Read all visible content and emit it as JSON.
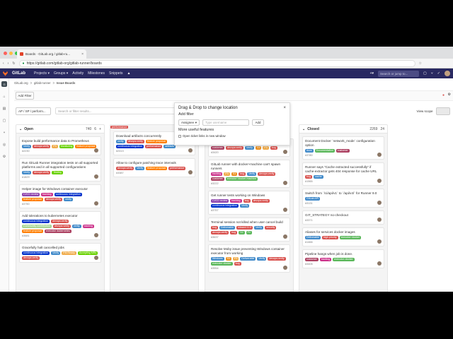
{
  "browser": {
    "tab_title": "Boards · GitLab.org / gitlab-ru...",
    "url": "https://gitlab.com/gitlab-org/gitlab-runner/boards"
  },
  "header": {
    "brand": "GitLab",
    "nav": [
      "Projects ▾",
      "Groups ▾",
      "Activity",
      "Milestones",
      "Snippets"
    ],
    "search_placeholder": "Search or jump to..."
  },
  "breadcrumb": [
    "GitLab.org",
    ">",
    "gitlab-runner",
    ">",
    "Issue Boards"
  ],
  "toolbar": {
    "add_filter": "Add Filter"
  },
  "filter": {
    "scope": "AP / SP / perform...",
    "placeholder": "Search or filter results...",
    "view_scope": "View scope"
  },
  "popup": {
    "title": "Drag & Drop to change location",
    "subtitle": "Add filter",
    "select": "Assignee",
    "input_placeholder": "Type username",
    "add": "Add",
    "more": "More useful features",
    "checkbox": "Open ticket links in new window"
  },
  "boards": [
    {
      "name": "Open",
      "count": "740",
      "weight": "6",
      "cards": [
        {
          "title": "Expose build performance data to Prometheus",
          "labels": [
            [
              "Verify",
              "#428bca"
            ],
            [
              "devops:verify",
              "#d9534f"
            ],
            [
              "P3",
              "#f0ad4e"
            ],
            [
              "Monitoring",
              "#69d100"
            ],
            [
              "feature proposal",
              "#ff8000"
            ]
          ],
          "num": "#2230"
        },
        {
          "title": "Run GitLab Runner integration tests on all supported platforms and in all supported configurations",
          "labels": [
            [
              "Verify",
              "#428bca"
            ],
            [
              "devops:verify",
              "#d9534f"
            ],
            [
              "Testing",
              "#69d100"
            ]
          ],
          "num": "#1829"
        },
        {
          "title": "Helper image for Windows container executor",
          "labels": [
            [
              "CI/CD review",
              "#8e44ad"
            ],
            [
              "backlog",
              "#cc338b"
            ],
            [
              "continuous integration",
              "#0033cc"
            ],
            [
              "feature proposal",
              "#ff8000"
            ],
            [
              "devops:verify",
              "#d9534f"
            ],
            [
              "verify",
              "#428bca"
            ]
          ],
          "num": "#3750"
        },
        {
          "title": "Add tolerations to kubernetes executor",
          "labels": [
            [
              "continuous integration",
              "#0033cc"
            ],
            [
              "devops:verify",
              "#d9534f"
            ],
            [
              "Community contribution",
              "#a8d695"
            ],
            [
              "devops:verify",
              "#d9534f"
            ],
            [
              "verify",
              "#428bca"
            ],
            [
              "backlog",
              "#cc338b"
            ],
            [
              "feature proposal",
              "#ff8000"
            ],
            [
              "executor::kubernetes",
              "#ad4363"
            ]
          ],
          "num": "#3681"
        },
        {
          "title": "Gracefully halt cancelled jobs",
          "labels": [
            [
              "continuous integration",
              "#0033cc"
            ],
            [
              "Verify",
              "#428bca"
            ],
            [
              "PM Ready",
              "#f0ad4e"
            ],
            [
              "Accepting MRs",
              "#69d100"
            ],
            [
              "devops:verify",
              "#d9534f"
            ]
          ],
          "num": ""
        }
      ]
    },
    {
      "name": "performance",
      "count": "",
      "weight": "",
      "cards": [
        {
          "title": "Download artifacts concurrently",
          "labels": [
            [
              "verify",
              "#428bca"
            ],
            [
              "devops:verify",
              "#d9534f"
            ],
            [
              "feature proposal",
              "#ff8000"
            ],
            [
              "continuous integration",
              "#0033cc"
            ],
            [
              "performance",
              "#d9534f"
            ],
            [
              "artifacts",
              "#428bca"
            ]
          ],
          "num": "#2413"
        },
        {
          "title": "Allow to configure patching trace intervals",
          "labels": [
            [
              "devops:verify",
              "#d9534f"
            ],
            [
              "Verify",
              "#428bca"
            ],
            [
              "feature proposal",
              "#ff8000"
            ],
            [
              "performance",
              "#d9534f"
            ]
          ],
          "num": "#3387"
        }
      ]
    },
    {
      "name": "",
      "count": "",
      "weight": "",
      "cards": [
        {
          "title": "",
          "labels": [
            [
              "customer",
              "#ad4363"
            ],
            [
              "devops:verify",
              "#d9534f"
            ],
            [
              "Verify",
              "#428bca"
            ],
            [
              "S3",
              "#ed9121"
            ],
            [
              "P3",
              "#f0ad4e"
            ],
            [
              "bug",
              "#d9534f"
            ]
          ],
          "num": "#3420"
        },
        {
          "title": "GitLab runner with docker+machine can't spawn runners",
          "labels": [
            [
              "backlog",
              "#cc338b"
            ],
            [
              "P3",
              "#f0ad4e"
            ],
            [
              "S3",
              "#ed9121"
            ],
            [
              "bug",
              "#d9534f"
            ],
            [
              "Verify",
              "#428bca"
            ],
            [
              "devops:verify",
              "#d9534f"
            ],
            [
              "customer",
              "#ad4363"
            ],
            [
              "executor::docker-machine",
              "#5cb85c"
            ]
          ],
          "num": "#3222"
        },
        {
          "title": "Get runner tests working on Windows",
          "labels": [
            [
              "CI/CD review",
              "#8e44ad"
            ],
            [
              "backlog",
              "#cc338b"
            ],
            [
              "bug",
              "#d9534f"
            ],
            [
              "devops:verify",
              "#d9534f"
            ],
            [
              "continuous integration",
              "#0033cc"
            ],
            [
              "Verify",
              "#428bca"
            ]
          ],
          "num": "#3757"
        },
        {
          "title": "Terminal session not killed when user cancel build",
          "labels": [
            [
              "bug",
              "#d9534f"
            ],
            [
              "Deliverable",
              "#428bca"
            ],
            [
              "missed:11.5",
              "#d9534f"
            ],
            [
              "Verify",
              "#428bca"
            ],
            [
              "security",
              "#d9534f"
            ],
            [
              "devops:verify",
              "#d9534f"
            ],
            [
              "bug",
              "#d9534f"
            ],
            [
              "S2",
              "#5cb85c"
            ],
            [
              "P2",
              "#5cb85c"
            ]
          ],
          "num": "#3637"
        },
        {
          "title": "Resolve Moby issue preventing Windows container executor from working",
          "labels": [
            [
              "Windows",
              "#428bca"
            ],
            [
              "S3",
              "#ed9121"
            ],
            [
              "P3",
              "#f0ad4e"
            ],
            [
              "Deliverable",
              "#428bca"
            ],
            [
              "Verify",
              "#428bca"
            ],
            [
              "devops:verify",
              "#d9534f"
            ],
            [
              "executor::docker",
              "#5cb85c"
            ],
            [
              "bug",
              "#d9534f"
            ]
          ],
          "num": "#3554"
        }
      ]
    },
    {
      "name": "Closed",
      "count": "2269",
      "weight": "24",
      "cards": [
        {
          "title": "Document Docker `network_mode` configuration option",
          "labels": [
            [
              "docs",
              "#428bca"
            ],
            [
              "Documentation",
              "#5cb85c"
            ],
            [
              "customer",
              "#ad4363"
            ]
          ],
          "num": "#3780"
        },
        {
          "title": "Runner says \"Cache extracted successfully\" if cache-extractor gets 404 response for cache URL",
          "labels": [
            [
              "bug",
              "#d9534f"
            ],
            [
              "cache",
              "#428bca"
            ]
          ],
          "num": "#1965"
        },
        {
          "title": "Switch from `/ci/api/v1` to `/api/v4/` for Runner 9.0",
          "labels": [
            [
              "GitLab API",
              "#428bca"
            ]
          ],
          "num": "#3131"
        },
        {
          "title": "GIT_STRATEGY no-checkout",
          "labels": [],
          "num": "#3371"
        },
        {
          "title": "Aliases for services docker images",
          "labels": [
            [
              "Deliverable",
              "#428bca"
            ],
            [
              "high priority",
              "#d9534f"
            ],
            [
              "executor::docker",
              "#5cb85c"
            ]
          ],
          "num": "#1466"
        },
        {
          "title": "Pipeline hangs when job is done.",
          "labels": [
            [
              "customer",
              "#ad4363"
            ],
            [
              "backlog",
              "#cc338b"
            ],
            [
              "executor::docker",
              "#5cb85c"
            ]
          ],
          "num": "#3405"
        }
      ]
    }
  ]
}
